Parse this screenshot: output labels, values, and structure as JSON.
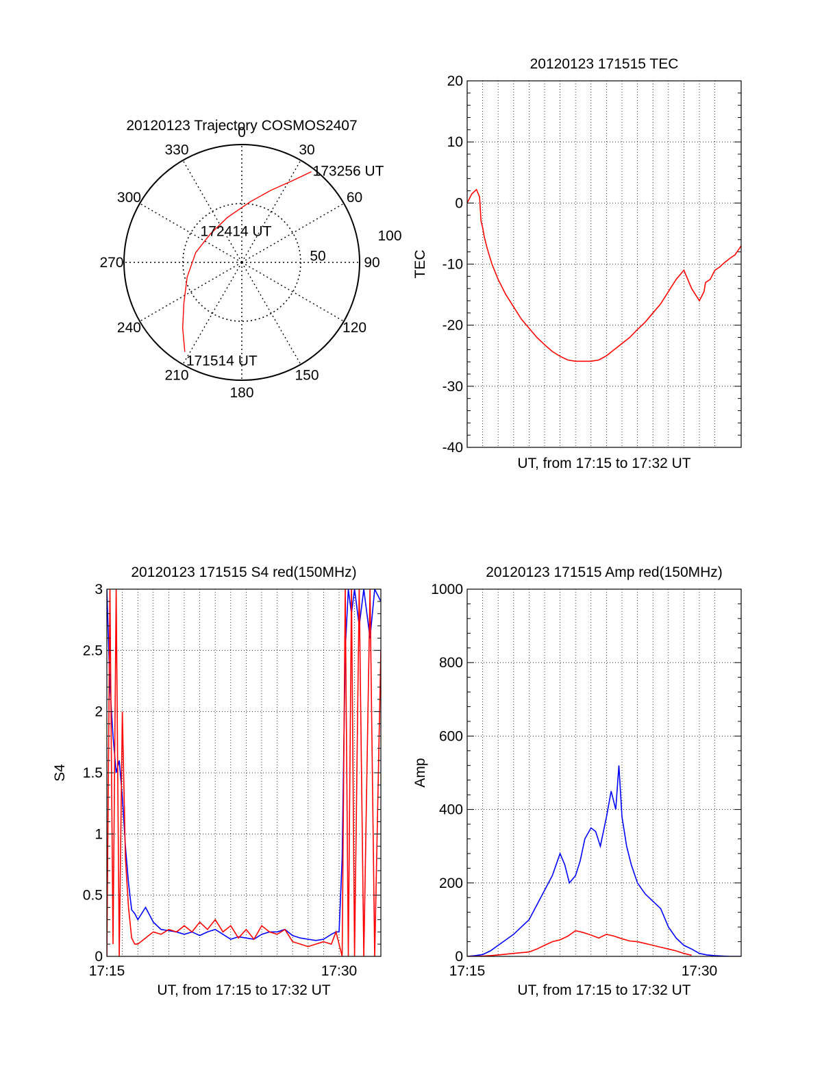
{
  "chart_data": [
    {
      "id": "trajectory",
      "type": "polar",
      "title": "20120123 Trajectory COSMOS2407",
      "azimuth_labels": [
        "0",
        "30",
        "60",
        "90",
        "120",
        "150",
        "180",
        "210",
        "240",
        "270",
        "300",
        "330"
      ],
      "radial_labels": [
        "50",
        "100"
      ],
      "rlim": [
        0,
        100
      ],
      "grid": true,
      "trajectory_color": "#ff0000",
      "trajectory": [
        {
          "az": 212.5,
          "r": 90
        },
        {
          "az": 222,
          "r": 75
        },
        {
          "az": 235,
          "r": 60
        },
        {
          "az": 255,
          "r": 48
        },
        {
          "az": 282,
          "r": 40
        },
        {
          "az": 312,
          "r": 36
        },
        {
          "az": 342,
          "r": 40
        },
        {
          "az": 8,
          "r": 52
        },
        {
          "az": 22,
          "r": 66
        },
        {
          "az": 32,
          "r": 82
        },
        {
          "az": 37.5,
          "r": 97
        }
      ],
      "annotations": [
        {
          "text": "173256 UT",
          "az": 37.5,
          "r": 97
        },
        {
          "text": "172414 UT",
          "az": 320,
          "r": 14
        },
        {
          "text": "171514 UT",
          "az": 212.5,
          "r": 90
        }
      ]
    },
    {
      "id": "tec",
      "type": "line",
      "title": "20120123 171515 TEC",
      "xlabel": "UT, from 17:15 to 17:32 UT",
      "ylabel": "TEC",
      "xlim": [
        0,
        17.7
      ],
      "ylim": [
        -40,
        20
      ],
      "yticks": [
        "-40",
        "-30",
        "-20",
        "-10",
        "0",
        "10",
        "20"
      ],
      "xticks": [],
      "grid": true,
      "series": [
        {
          "color": "#ff0000",
          "x": [
            0,
            0.3,
            0.6,
            0.8,
            0.9,
            1.0,
            1.1,
            1.3,
            1.6,
            2.0,
            2.5,
            3.0,
            3.5,
            4.0,
            4.5,
            5.0,
            5.5,
            6.0,
            6.5,
            7.0,
            7.5,
            8.0,
            8.5,
            9.0,
            9.5,
            10.0,
            10.5,
            11.0,
            11.5,
            12.0,
            12.5,
            13.0,
            13.5,
            14.0,
            14.5,
            15.0,
            15.3,
            15.4,
            15.7,
            16.0,
            16.3,
            16.6,
            17.0,
            17.3,
            17.7
          ],
          "y": [
            0,
            1.5,
            2.2,
            1.0,
            -3.0,
            -4.0,
            -5.5,
            -7.5,
            -10.0,
            -12.5,
            -15.0,
            -17.0,
            -19.0,
            -20.5,
            -22.0,
            -23.2,
            -24.3,
            -25.1,
            -25.7,
            -25.9,
            -25.9,
            -25.9,
            -25.7,
            -25.0,
            -24.0,
            -23.0,
            -22.0,
            -20.7,
            -19.5,
            -18.0,
            -16.5,
            -14.5,
            -12.5,
            -11.0,
            -14.0,
            -16.0,
            -14.5,
            -13.0,
            -12.5,
            -11.0,
            -10.5,
            -9.8,
            -9.0,
            -8.5,
            -7.0
          ]
        }
      ]
    },
    {
      "id": "s4",
      "type": "line",
      "title": "20120123 171515 S4 red(150MHz)",
      "xlabel": "UT, from 17:15 to 17:32 UT",
      "ylabel": "S4",
      "xlim": [
        0,
        17.7
      ],
      "ylim": [
        0,
        3
      ],
      "xticks": [
        {
          "value": 0,
          "label": "17:15"
        },
        {
          "value": 15,
          "label": "17:30"
        }
      ],
      "yticks": [
        "0",
        "0.5",
        "1",
        "1.5",
        "2",
        "2.5",
        "3"
      ],
      "grid": true,
      "series": [
        {
          "color": "#0000ff",
          "x": [
            0,
            0.2,
            0.4,
            0.6,
            0.8,
            1.0,
            1.2,
            1.4,
            1.6,
            1.8,
            2.0,
            2.5,
            3.0,
            3.5,
            4.0,
            4.5,
            5.0,
            5.5,
            6.0,
            6.5,
            7.0,
            7.5,
            8.0,
            8.5,
            9.0,
            9.5,
            10.0,
            10.5,
            11.0,
            11.5,
            12.0,
            12.5,
            13.0,
            13.5,
            14.0,
            14.5,
            14.8,
            15.0,
            15.2,
            15.4,
            15.6,
            15.8,
            16.0,
            16.3,
            16.6,
            17.0,
            17.3,
            17.7
          ],
          "y": [
            3.0,
            2.2,
            1.8,
            1.5,
            1.6,
            1.3,
            0.9,
            0.6,
            0.38,
            0.35,
            0.3,
            0.4,
            0.28,
            0.22,
            0.21,
            0.2,
            0.18,
            0.2,
            0.17,
            0.2,
            0.22,
            0.18,
            0.14,
            0.16,
            0.15,
            0.14,
            0.18,
            0.2,
            0.2,
            0.22,
            0.17,
            0.15,
            0.14,
            0.13,
            0.14,
            0.18,
            0.2,
            0.2,
            0.8,
            2.5,
            3.0,
            2.8,
            3.0,
            2.7,
            3.0,
            2.6,
            3.0,
            2.9
          ]
        },
        {
          "color": "#ff0000",
          "x": [
            0,
            0.2,
            0.4,
            0.6,
            0.8,
            1.0,
            1.2,
            1.4,
            1.6,
            1.8,
            2.0,
            2.5,
            3.0,
            3.5,
            4.0,
            4.5,
            5.0,
            5.5,
            6.0,
            6.5,
            7.0,
            7.5,
            8.0,
            8.5,
            9.0,
            9.5,
            10.0,
            10.5,
            11.0,
            11.5,
            12.0,
            12.5,
            13.0,
            13.5,
            14.0,
            14.5,
            14.8,
            15.0,
            15.2,
            15.4,
            15.6,
            15.8,
            16.0,
            16.3,
            16.6,
            17.0,
            17.3,
            17.7
          ],
          "y": [
            0.0,
            3.0,
            0.1,
            3.0,
            0.0,
            2.0,
            0.8,
            0.4,
            0.15,
            0.1,
            0.1,
            0.15,
            0.2,
            0.18,
            0.22,
            0.2,
            0.25,
            0.2,
            0.28,
            0.22,
            0.3,
            0.2,
            0.25,
            0.15,
            0.22,
            0.14,
            0.25,
            0.2,
            0.18,
            0.22,
            0.12,
            0.1,
            0.08,
            0.1,
            0.12,
            0.1,
            0.2,
            0.1,
            0.0,
            3.0,
            0.0,
            3.0,
            0.0,
            3.0,
            0.0,
            3.0,
            0.0,
            2.5
          ]
        }
      ]
    },
    {
      "id": "amp",
      "type": "line",
      "title": "20120123 171515 Amp red(150MHz)",
      "xlabel": "UT, from 17:15 to 17:32 UT",
      "ylabel": "Amp",
      "xlim": [
        0,
        17.7
      ],
      "ylim": [
        0,
        1000
      ],
      "xticks": [
        {
          "value": 0,
          "label": "17:15"
        },
        {
          "value": 15,
          "label": "17:30"
        }
      ],
      "yticks": [
        "0",
        "200",
        "400",
        "600",
        "800",
        "1000"
      ],
      "grid": true,
      "series": [
        {
          "color": "#0000ff",
          "x": [
            0,
            0.5,
            1.0,
            1.5,
            2.0,
            2.5,
            3.0,
            3.5,
            4.0,
            4.5,
            5.0,
            5.5,
            6.0,
            6.3,
            6.6,
            7.0,
            7.3,
            7.6,
            8.0,
            8.3,
            8.6,
            9.0,
            9.3,
            9.6,
            9.8,
            10.0,
            10.3,
            10.6,
            11.0,
            11.5,
            12.0,
            12.5,
            13.0,
            13.5,
            14.0,
            14.5,
            15.0,
            15.5,
            16.0,
            16.5,
            17.0,
            17.7
          ],
          "y": [
            0,
            2,
            5,
            15,
            30,
            45,
            60,
            80,
            100,
            140,
            180,
            220,
            280,
            250,
            200,
            220,
            260,
            320,
            350,
            340,
            300,
            380,
            450,
            400,
            520,
            380,
            300,
            250,
            200,
            170,
            150,
            130,
            80,
            50,
            30,
            20,
            8,
            4,
            2,
            1,
            0,
            0
          ]
        },
        {
          "color": "#ff0000",
          "x": [
            0,
            0.5,
            1.0,
            1.5,
            2.0,
            2.5,
            3.0,
            3.5,
            4.0,
            4.5,
            5.0,
            5.5,
            6.0,
            6.5,
            7.0,
            7.5,
            8.0,
            8.5,
            9.0,
            9.5,
            10.0,
            10.5,
            11.0,
            11.5,
            12.0,
            12.5,
            13.0,
            13.5,
            14.0,
            14.5
          ],
          "y": [
            0,
            0,
            1,
            2,
            4,
            6,
            8,
            10,
            12,
            20,
            30,
            40,
            45,
            55,
            70,
            65,
            58,
            50,
            60,
            55,
            48,
            42,
            40,
            35,
            30,
            25,
            20,
            15,
            8,
            3
          ]
        }
      ]
    }
  ]
}
